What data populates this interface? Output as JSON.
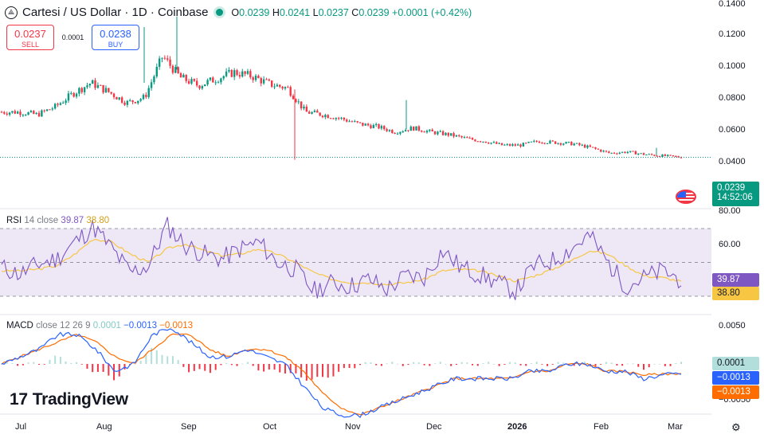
{
  "header": {
    "symbol_icon": "cartesi-logo-icon",
    "symbol_icon_glyph": "⟁",
    "title": "Cartesi / US Dollar · 1D · Coinbase",
    "open_label": "O",
    "open": "0.0239",
    "high_label": "H",
    "high": "0.0241",
    "low_label": "L",
    "low": "0.0237",
    "close_label": "C",
    "close": "0.0239",
    "change": "+0.0001 (+0.42%)"
  },
  "trade": {
    "sell_price": "0.0237",
    "sell_label": "SELL",
    "spread": "0.0001",
    "buy_price": "0.0238",
    "buy_label": "BUY"
  },
  "price_axis": {
    "ticks": [
      "0.1400",
      "0.1200",
      "0.1000",
      "0.0800",
      "0.0600",
      "0.0400"
    ],
    "last_price": "0.0239",
    "countdown": "14:52:06",
    "flag_icon": "us-flag-icon"
  },
  "rsi": {
    "label": "RSI",
    "params": "14 close",
    "value": "39.87",
    "ma_value": "38.80",
    "axis_ticks": [
      "80.00",
      "60.00"
    ],
    "badge_value": "39.87",
    "badge_ma": "38.80"
  },
  "macd": {
    "label": "MACD",
    "params": "close 12 26 9",
    "hist": "0.0001",
    "macd": "−0.0013",
    "signal": "−0.0013",
    "axis_ticks": [
      "0.0050",
      "−0.0050"
    ],
    "badge_hist": "0.0001",
    "badge_macd": "−0.0013",
    "badge_signal": "−0.0013"
  },
  "time_axis": [
    "Jul",
    "Aug",
    "Sep",
    "Oct",
    "Nov",
    "Dec",
    "2026",
    "Feb",
    "Mar"
  ],
  "branding": {
    "logo_mark": "17",
    "name": "TradingView"
  },
  "settings_icon": "gear-icon",
  "colors": {
    "up": "#089981",
    "down": "#f23645",
    "rsi_line": "#7e57c2",
    "rsi_ma": "#f7c744",
    "rsi_band": "#ede7f6",
    "macd_line": "#2962ff",
    "signal_line": "#ff6d00",
    "hist_up": "#b2dfdb",
    "hist_down": "#f23645",
    "last_price_bg": "#089981"
  },
  "chart_data": [
    {
      "type": "candlestick",
      "title": "Cartesi / US Dollar · 1D · Coinbase",
      "x_ticks": [
        "Jul",
        "Aug",
        "Sep",
        "Oct",
        "Nov",
        "Dec",
        "2026",
        "Feb",
        "Mar"
      ],
      "ylim": [
        0.02,
        0.14
      ],
      "y_ticks": [
        0.14,
        0.12,
        0.1,
        0.08,
        0.06,
        0.04
      ],
      "series": [
        {
          "name": "Close (approx.)",
          "x": [
            "Jun 25",
            "Jul 1",
            "Jul 8",
            "Jul 15",
            "Jul 22",
            "Jul 29",
            "Aug 5",
            "Aug 12",
            "Aug 16",
            "Aug 19",
            "Aug 26",
            "Sep 2",
            "Sep 9",
            "Sep 16",
            "Sep 23",
            "Sep 30",
            "Oct 7",
            "Oct 10",
            "Oct 17",
            "Oct 24",
            "Oct 31",
            "Nov 7",
            "Nov 14",
            "Nov 21",
            "Nov 28",
            "Dec 5",
            "Dec 12",
            "Dec 19",
            "Dec 26",
            "Jan 2",
            "Jan 9",
            "Jan 16",
            "Jan 23",
            "Jan 30",
            "Feb 6",
            "Feb 13",
            "Feb 20",
            "Feb 27",
            "Mar 3"
          ],
          "values": [
            0.058,
            0.058,
            0.056,
            0.062,
            0.072,
            0.08,
            0.073,
            0.065,
            0.069,
            0.1,
            0.084,
            0.078,
            0.083,
            0.088,
            0.085,
            0.079,
            0.076,
            0.058,
            0.056,
            0.053,
            0.049,
            0.047,
            0.043,
            0.046,
            0.043,
            0.041,
            0.038,
            0.036,
            0.033,
            0.033,
            0.036,
            0.035,
            0.034,
            0.031,
            0.027,
            0.028,
            0.026,
            0.025,
            0.024
          ]
        }
      ],
      "last": 0.0239,
      "open": 0.0239,
      "high": 0.0241,
      "low": 0.0237,
      "close": 0.0239
    },
    {
      "type": "line",
      "title": "RSI 14 close",
      "y_ticks": [
        80,
        60
      ],
      "bands": [
        70,
        50,
        30
      ],
      "series": [
        {
          "name": "RSI",
          "values": [
            47,
            43,
            49,
            52,
            62,
            71,
            58,
            44,
            48,
            72,
            60,
            55,
            52,
            58,
            62,
            50,
            46,
            33,
            38,
            36,
            40,
            34,
            42,
            41,
            57,
            47,
            43,
            38,
            33,
            48,
            51,
            58,
            66,
            50,
            36,
            41,
            45,
            39.87
          ]
        },
        {
          "name": "MA",
          "values": [
            45,
            45,
            46,
            48,
            55,
            64,
            62,
            55,
            50,
            58,
            61,
            57,
            54,
            55,
            58,
            55,
            50,
            44,
            40,
            38,
            38,
            37,
            38,
            40,
            45,
            46,
            45,
            42,
            39,
            42,
            46,
            51,
            57,
            55,
            48,
            42,
            41,
            38.8
          ]
        }
      ],
      "last_rsi": 39.87,
      "last_ma": 38.8
    },
    {
      "type": "line",
      "title": "MACD close 12 26 9",
      "y_ticks": [
        0.005,
        -0.005
      ],
      "series": [
        {
          "name": "MACD",
          "values": [
            0.0,
            0.001,
            0.002,
            0.004,
            0.004,
            0.002,
            -0.001,
            0.0,
            0.004,
            0.005,
            0.003,
            0.001,
            0.001,
            0.002,
            0.001,
            0.0,
            -0.003,
            -0.006,
            -0.007,
            -0.007,
            -0.006,
            -0.005,
            -0.004,
            -0.003,
            -0.002,
            -0.002,
            -0.002,
            -0.002,
            -0.001,
            -0.001,
            0.0,
            0.0,
            -0.001,
            -0.001,
            -0.002,
            -0.0015,
            -0.0013
          ]
        },
        {
          "name": "Signal",
          "values": [
            0.0,
            0.001,
            0.002,
            0.003,
            0.004,
            0.003,
            0.001,
            0.0,
            0.002,
            0.004,
            0.004,
            0.002,
            0.001,
            0.002,
            0.002,
            0.001,
            -0.001,
            -0.004,
            -0.006,
            -0.007,
            -0.006,
            -0.005,
            -0.004,
            -0.003,
            -0.002,
            -0.002,
            -0.002,
            -0.002,
            -0.001,
            -0.001,
            0.0,
            0.0,
            -0.001,
            -0.001,
            -0.0015,
            -0.0014,
            -0.0013
          ]
        }
      ],
      "last_histogram": 0.0001,
      "last_macd": -0.0013,
      "last_signal": -0.0013
    }
  ]
}
